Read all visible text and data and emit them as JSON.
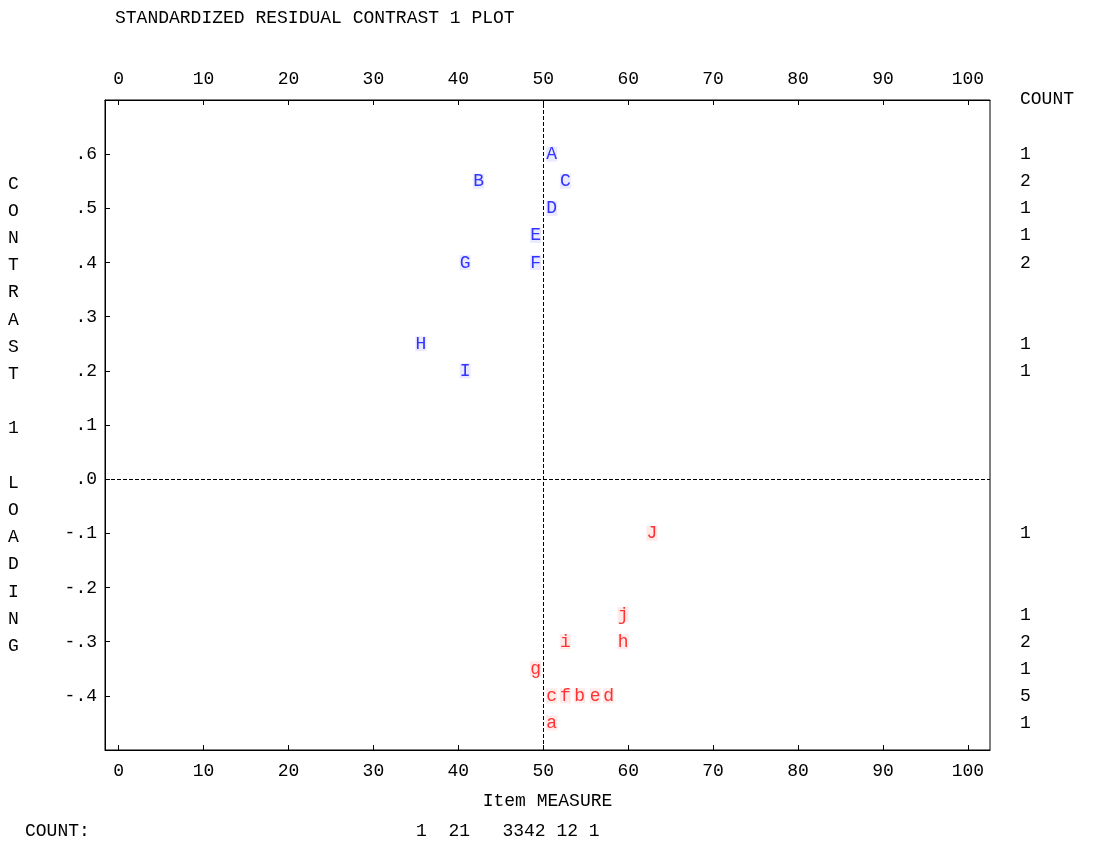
{
  "chart_data": {
    "type": "scatter",
    "title": "STANDARDIZED RESIDUAL CONTRAST 1 PLOT",
    "xlabel": "Item MEASURE",
    "ylabel": "CONTRAST 1 LOADING",
    "xlim": [
      -1.6,
      102.6
    ],
    "xticks": [
      0,
      10,
      20,
      30,
      40,
      50,
      60,
      70,
      80,
      90,
      100
    ],
    "x2lim": [
      -1.6,
      102.6
    ],
    "x2ticks": [
      0,
      10,
      20,
      30,
      40,
      50,
      60,
      70,
      80,
      90,
      100
    ],
    "ylim": [
      -0.5,
      0.7
    ],
    "yticks": [
      {
        "value": 0.6,
        "label": ".6"
      },
      {
        "value": 0.5,
        "label": ".5"
      },
      {
        "value": 0.4,
        "label": ".4"
      },
      {
        "value": 0.3,
        "label": ".3"
      },
      {
        "value": 0.2,
        "label": ".2"
      },
      {
        "value": 0.1,
        "label": ".1"
      },
      {
        "value": 0,
        "label": ".0"
      },
      {
        "value": -0.1,
        "label": "-.1"
      },
      {
        "value": -0.2,
        "label": "-.2"
      },
      {
        "value": -0.3,
        "label": "-.3"
      },
      {
        "value": -0.4,
        "label": "-.4"
      }
    ],
    "marker": "square",
    "series": [
      {
        "color": "#3333ff",
        "x": [
          51,
          42.4,
          52.6,
          51,
          49.1,
          49.1,
          40.8,
          35.6,
          40.8
        ],
        "values": [
          0.6,
          0.55,
          0.55,
          0.5,
          0.45,
          0.4,
          0.4,
          0.25,
          0.2
        ],
        "value_labels": [
          "A",
          "B",
          "C",
          "D",
          "E",
          "F",
          "G",
          "H",
          "I"
        ]
      },
      {
        "color": "#ff3333",
        "x": [
          62.8,
          59.4,
          52.6,
          59.4,
          49.1,
          51,
          52.6,
          54.3,
          56.1,
          57.7,
          51
        ],
        "values": [
          -0.1,
          -0.25,
          -0.3,
          -0.3,
          -0.35,
          -0.4,
          -0.4,
          -0.4,
          -0.4,
          -0.4,
          -0.45
        ],
        "value_labels": [
          "J",
          "j",
          "i",
          "h",
          "g",
          "c",
          "f",
          "b",
          "e",
          "d",
          "a"
        ]
      }
    ],
    "ref_lines": [
      {
        "axis": "x",
        "value": 50,
        "color": "#000000",
        "line_style": "dashed"
      },
      {
        "axis": "y",
        "value": 0,
        "color": "#000000",
        "line_style": "dashed"
      }
    ],
    "annotations": [
      "COUNT",
      "COUNT:",
      "1\n2\n1\n1\n2\n\n\n1\n1\n\n\n\n\n\n1\n\n\n1\n2\n1\n5\n1",
      "1  21   3342 12 1"
    ]
  }
}
